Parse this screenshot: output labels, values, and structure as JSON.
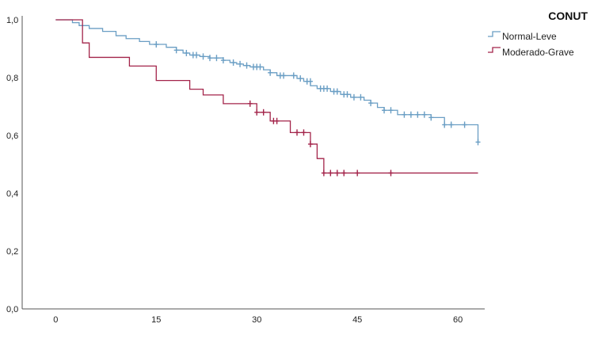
{
  "chart_data": {
    "type": "line",
    "subtype": "kaplan-meier-step",
    "xlim": [
      -5,
      64
    ],
    "ylim": [
      0,
      1.0
    ],
    "x_ticks": [
      "0",
      "15",
      "30",
      "45",
      "60"
    ],
    "x_tick_values": [
      0,
      15,
      30,
      45,
      60
    ],
    "y_ticks": [
      "0,0",
      "0,2",
      "0,4",
      "0,6",
      "0,8",
      "1,0"
    ],
    "y_tick_values": [
      0,
      0.2,
      0.4,
      0.6,
      0.8,
      1.0
    ],
    "grid": false,
    "legend": {
      "title": "CONUT",
      "placement": "top-right",
      "items": [
        {
          "label": "Normal-Leve",
          "color": "#6a9ec4"
        },
        {
          "label": "Moderado-Grave",
          "color": "#a3244a"
        }
      ]
    },
    "series": [
      {
        "name": "Normal-Leve",
        "color": "#6a9ec4",
        "steps": [
          [
            0,
            1.0
          ],
          [
            2.5,
            0.99
          ],
          [
            3.5,
            0.98
          ],
          [
            5,
            0.97
          ],
          [
            7,
            0.96
          ],
          [
            9,
            0.945
          ],
          [
            10.5,
            0.935
          ],
          [
            12.5,
            0.925
          ],
          [
            14,
            0.915
          ],
          [
            16.5,
            0.905
          ],
          [
            18,
            0.895
          ],
          [
            19,
            0.885
          ],
          [
            20,
            0.878
          ],
          [
            21.5,
            0.873
          ],
          [
            23,
            0.868
          ],
          [
            25,
            0.86
          ],
          [
            26,
            0.852
          ],
          [
            27,
            0.847
          ],
          [
            28,
            0.842
          ],
          [
            29,
            0.837
          ],
          [
            31,
            0.827
          ],
          [
            32,
            0.817
          ],
          [
            33,
            0.807
          ],
          [
            36,
            0.797
          ],
          [
            37,
            0.787
          ],
          [
            38,
            0.772
          ],
          [
            39,
            0.762
          ],
          [
            41,
            0.752
          ],
          [
            42.5,
            0.742
          ],
          [
            44,
            0.732
          ],
          [
            46,
            0.722
          ],
          [
            47,
            0.712
          ],
          [
            48,
            0.697
          ],
          [
            49,
            0.687
          ],
          [
            51,
            0.672
          ],
          [
            56,
            0.662
          ],
          [
            58,
            0.637
          ],
          [
            63,
            0.577
          ]
        ],
        "end_x": 63,
        "censored": [
          [
            15,
            0.915
          ],
          [
            18,
            0.895
          ],
          [
            19.5,
            0.885
          ],
          [
            20.5,
            0.878
          ],
          [
            21,
            0.878
          ],
          [
            22,
            0.873
          ],
          [
            23,
            0.868
          ],
          [
            24,
            0.868
          ],
          [
            25,
            0.86
          ],
          [
            26.5,
            0.852
          ],
          [
            27.5,
            0.847
          ],
          [
            28.5,
            0.842
          ],
          [
            29.5,
            0.837
          ],
          [
            30,
            0.837
          ],
          [
            30.5,
            0.837
          ],
          [
            32,
            0.817
          ],
          [
            33.5,
            0.807
          ],
          [
            34,
            0.807
          ],
          [
            35.5,
            0.807
          ],
          [
            36.5,
            0.797
          ],
          [
            37.5,
            0.787
          ],
          [
            38,
            0.787
          ],
          [
            39.5,
            0.762
          ],
          [
            40,
            0.762
          ],
          [
            40.5,
            0.762
          ],
          [
            41.5,
            0.752
          ],
          [
            42,
            0.752
          ],
          [
            43,
            0.742
          ],
          [
            43.5,
            0.742
          ],
          [
            44.5,
            0.732
          ],
          [
            45.5,
            0.732
          ],
          [
            47,
            0.712
          ],
          [
            49,
            0.687
          ],
          [
            50,
            0.687
          ],
          [
            52,
            0.672
          ],
          [
            53,
            0.672
          ],
          [
            54,
            0.672
          ],
          [
            55,
            0.672
          ],
          [
            56,
            0.662
          ],
          [
            58,
            0.637
          ],
          [
            59,
            0.637
          ],
          [
            61,
            0.637
          ],
          [
            63,
            0.577
          ]
        ]
      },
      {
        "name": "Moderado-Grave",
        "color": "#a3244a",
        "steps": [
          [
            0,
            1.0
          ],
          [
            4,
            0.92
          ],
          [
            5,
            0.87
          ],
          [
            11,
            0.84
          ],
          [
            15,
            0.79
          ],
          [
            20,
            0.76
          ],
          [
            22,
            0.74
          ],
          [
            25,
            0.71
          ],
          [
            30,
            0.68
          ],
          [
            32,
            0.65
          ],
          [
            35,
            0.61
          ],
          [
            38,
            0.57
          ],
          [
            39,
            0.52
          ],
          [
            40,
            0.47
          ]
        ],
        "end_x": 63,
        "censored": [
          [
            29,
            0.71
          ],
          [
            30,
            0.68
          ],
          [
            31,
            0.68
          ],
          [
            32.5,
            0.65
          ],
          [
            33,
            0.65
          ],
          [
            36,
            0.61
          ],
          [
            37,
            0.61
          ],
          [
            38,
            0.57
          ],
          [
            40,
            0.47
          ],
          [
            41,
            0.47
          ],
          [
            42,
            0.47
          ],
          [
            43,
            0.47
          ],
          [
            45,
            0.47
          ],
          [
            50,
            0.47
          ]
        ]
      }
    ]
  }
}
